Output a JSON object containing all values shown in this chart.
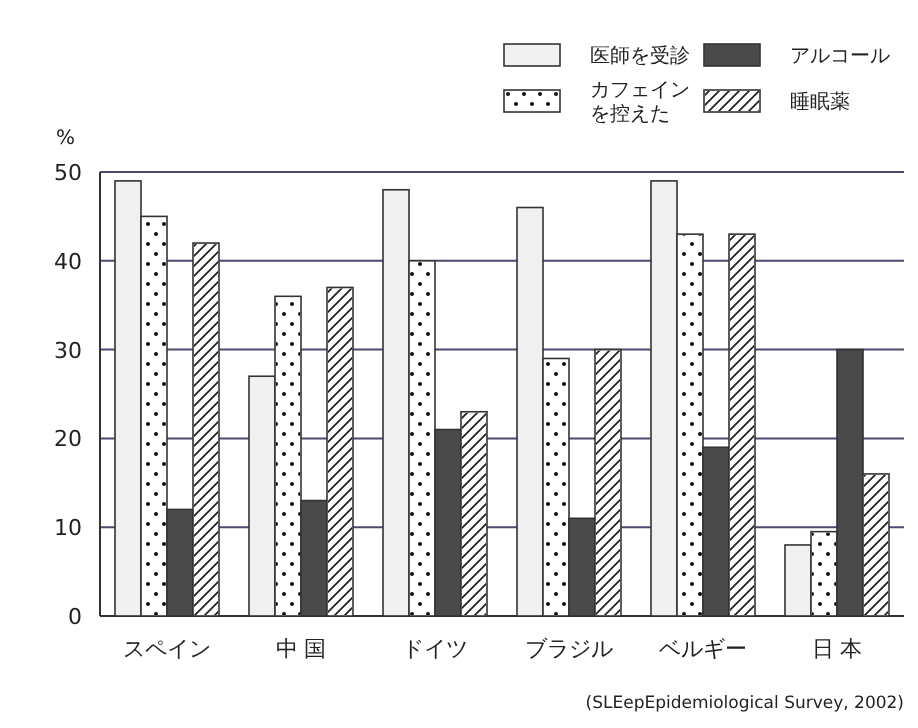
{
  "chart_data": {
    "type": "bar",
    "ylabel": "%",
    "categories": [
      "スペイン",
      "中 国",
      "ドイツ",
      "ブラジル",
      "ベルギー",
      "日 本"
    ],
    "series": [
      {
        "name": "医師を受診",
        "color": "#f0f0f0",
        "values": [
          49,
          27,
          48,
          46,
          49,
          8
        ]
      },
      {
        "name": "カフェインを控えた",
        "color": "#ffffff",
        "values": [
          45,
          36,
          40,
          29,
          43,
          9.5
        ]
      },
      {
        "name": "アルコール",
        "color": "#4a4a4a",
        "values": [
          12,
          13,
          21,
          11,
          19,
          30
        ]
      },
      {
        "name": "睡眠薬",
        "color": "#ffffff",
        "values": [
          42,
          37,
          23,
          30,
          43,
          16
        ]
      }
    ],
    "ylim": [
      0,
      50
    ],
    "yticks": [
      0,
      10,
      20,
      30,
      40,
      50
    ],
    "grid": "y",
    "legend": "top right",
    "annotations": [
      "(SLEepEpidemiological Survey, 2002)"
    ]
  }
}
